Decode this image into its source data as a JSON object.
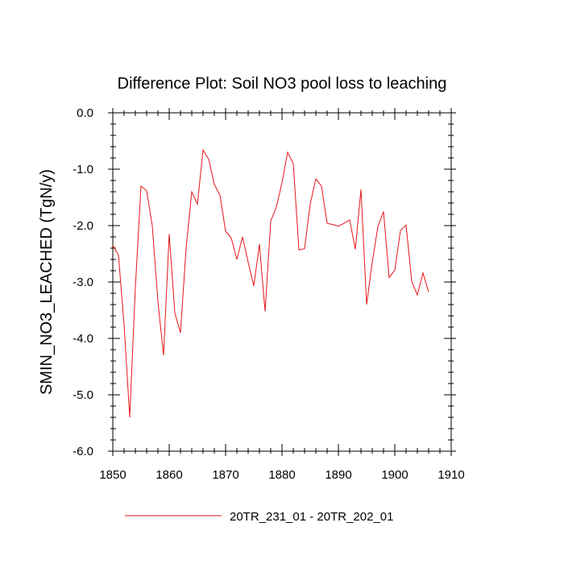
{
  "chart_data": {
    "type": "line",
    "title": "Difference Plot: Soil NO3 pool loss to leaching",
    "xlabel": "",
    "ylabel": "SMIN_NO3_LEACHED  (TgN/y)",
    "xlim": [
      1850,
      1910
    ],
    "ylim": [
      -6.0,
      0.0
    ],
    "xticks": [
      1850,
      1860,
      1870,
      1880,
      1890,
      1900,
      1910
    ],
    "yticks": [
      0.0,
      -1.0,
      -2.0,
      -3.0,
      -4.0,
      -5.0,
      -6.0
    ],
    "xtick_labels": [
      "1850",
      "1860",
      "1870",
      "1880",
      "1890",
      "1900",
      "1910"
    ],
    "ytick_labels": [
      "0.0",
      "-1.0",
      "-2.0",
      "-3.0",
      "-4.0",
      "-5.0",
      "-6.0"
    ],
    "grid": false,
    "legend_position": "bottom",
    "series": [
      {
        "name": "20TR_231_01 - 20TR_202_01",
        "color": "#e8141a",
        "x": [
          1850,
          1851,
          1852,
          1853,
          1854,
          1855,
          1856,
          1857,
          1858,
          1859,
          1860,
          1861,
          1862,
          1863,
          1864,
          1865,
          1866,
          1867,
          1868,
          1869,
          1870,
          1871,
          1872,
          1873,
          1874,
          1875,
          1876,
          1877,
          1878,
          1879,
          1880,
          1881,
          1882,
          1883,
          1884,
          1885,
          1886,
          1887,
          1888,
          1889,
          1890,
          1891,
          1892,
          1893,
          1894,
          1895,
          1896,
          1897,
          1898,
          1899,
          1900,
          1901,
          1902,
          1903,
          1904,
          1905,
          1906
        ],
        "y": [
          -2.35,
          -2.52,
          -3.75,
          -5.4,
          -3.1,
          -1.3,
          -1.38,
          -2.0,
          -3.35,
          -4.3,
          -2.15,
          -3.55,
          -3.9,
          -2.4,
          -1.4,
          -1.62,
          -0.66,
          -0.82,
          -1.27,
          -1.46,
          -2.1,
          -2.22,
          -2.6,
          -2.2,
          -2.65,
          -3.07,
          -2.33,
          -3.52,
          -1.92,
          -1.67,
          -1.24,
          -0.7,
          -0.9,
          -2.43,
          -2.41,
          -1.62,
          -1.17,
          -1.3,
          -1.96,
          -1.98,
          -2.01,
          -1.96,
          -1.9,
          -2.42,
          -1.36,
          -3.4,
          -2.65,
          -2.02,
          -1.75,
          -2.92,
          -2.79,
          -2.09,
          -1.99,
          -2.99,
          -3.23,
          -2.84,
          -3.18
        ]
      }
    ]
  }
}
